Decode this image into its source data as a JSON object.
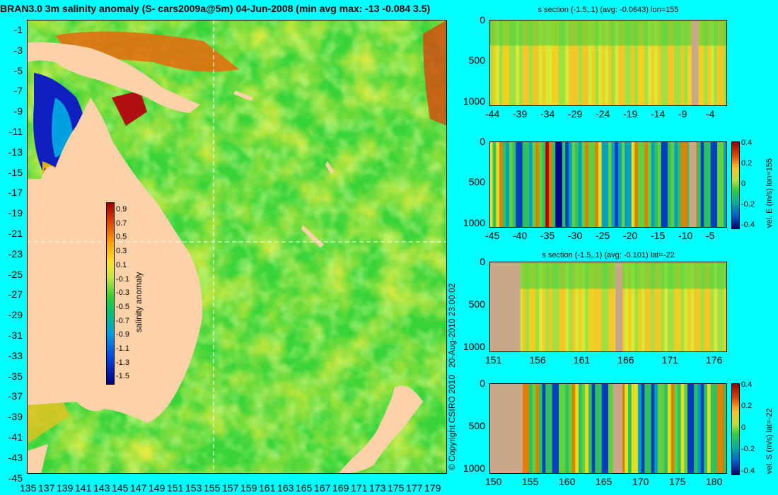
{
  "map": {
    "title": "BRAN3.0 3m salinity anomaly (S- cars2009a@5m) 04-Jun-2008 (min avg max: -13 -0.084 3.5)",
    "lat_ticks": [
      "-1",
      "-3",
      "-5",
      "-7",
      "-9",
      "-11",
      "-13",
      "-15",
      "-17",
      "-19",
      "-21",
      "-23",
      "-25",
      "-27",
      "-29",
      "-31",
      "-33",
      "-35",
      "-37",
      "-39",
      "-41",
      "-43",
      "-45"
    ],
    "lon_ticks": [
      "135",
      "137",
      "139",
      "141",
      "143",
      "145",
      "147",
      "149",
      "151",
      "153",
      "155",
      "157",
      "159",
      "161",
      "163",
      "165",
      "167",
      "169",
      "171",
      "173",
      "175",
      "177",
      "179"
    ],
    "section_lon": 155,
    "section_lat": -22,
    "colorbar": {
      "label": "salinity anomaly",
      "ticks": [
        "0.9",
        "0.7",
        "0.5",
        "0.3",
        "0.1",
        "-0.1",
        "-0.3",
        "-0.5",
        "-0.7",
        "-0.9",
        "-1.1",
        "-1.3",
        "-1.5"
      ]
    },
    "colors": {
      "land": "#fdd2a8",
      "ocean": "#38d838",
      "background": "#00ffff"
    }
  },
  "stamp": {
    "date": "20-Aug-2010 23:00:02",
    "copyright": "© Copyright CSIRO 2010"
  },
  "panels": [
    {
      "title": "s section (-1.5,.1) (avg: -0.0643) lon=155",
      "y_ticks": [
        "0",
        "500",
        "1000"
      ],
      "x_ticks": [
        "-44",
        "-39",
        "-34",
        "-29",
        "-24",
        "-19",
        "-14",
        "-9",
        "-4"
      ],
      "cbar_label": "",
      "cbar_ticks": []
    },
    {
      "title": "",
      "y_ticks": [
        "0",
        "500",
        "1000"
      ],
      "x_ticks": [
        "-45",
        "-40",
        "-35",
        "-30",
        "-25",
        "-20",
        "-15",
        "-10",
        "-5"
      ],
      "cbar_label": "vel. E (m/s) lon=155",
      "cbar_ticks": [
        "0.4",
        "0.2",
        "0",
        "-0.2",
        "-0.4"
      ]
    },
    {
      "title": "s section (-1.5,.1) (avg: -0.101) lat=-22",
      "y_ticks": [
        "0",
        "500",
        "1000"
      ],
      "x_ticks": [
        "151",
        "156",
        "161",
        "166",
        "171",
        "176"
      ],
      "cbar_label": "",
      "cbar_ticks": []
    },
    {
      "title": "",
      "y_ticks": [
        "0",
        "500",
        "1000"
      ],
      "x_ticks": [
        "150",
        "155",
        "160",
        "165",
        "170",
        "175",
        "180"
      ],
      "cbar_label": "vel. S (m/s) lat=-22",
      "cbar_ticks": [
        "0.4",
        "0.2",
        "0",
        "-0.2",
        "-0.4"
      ]
    }
  ]
}
